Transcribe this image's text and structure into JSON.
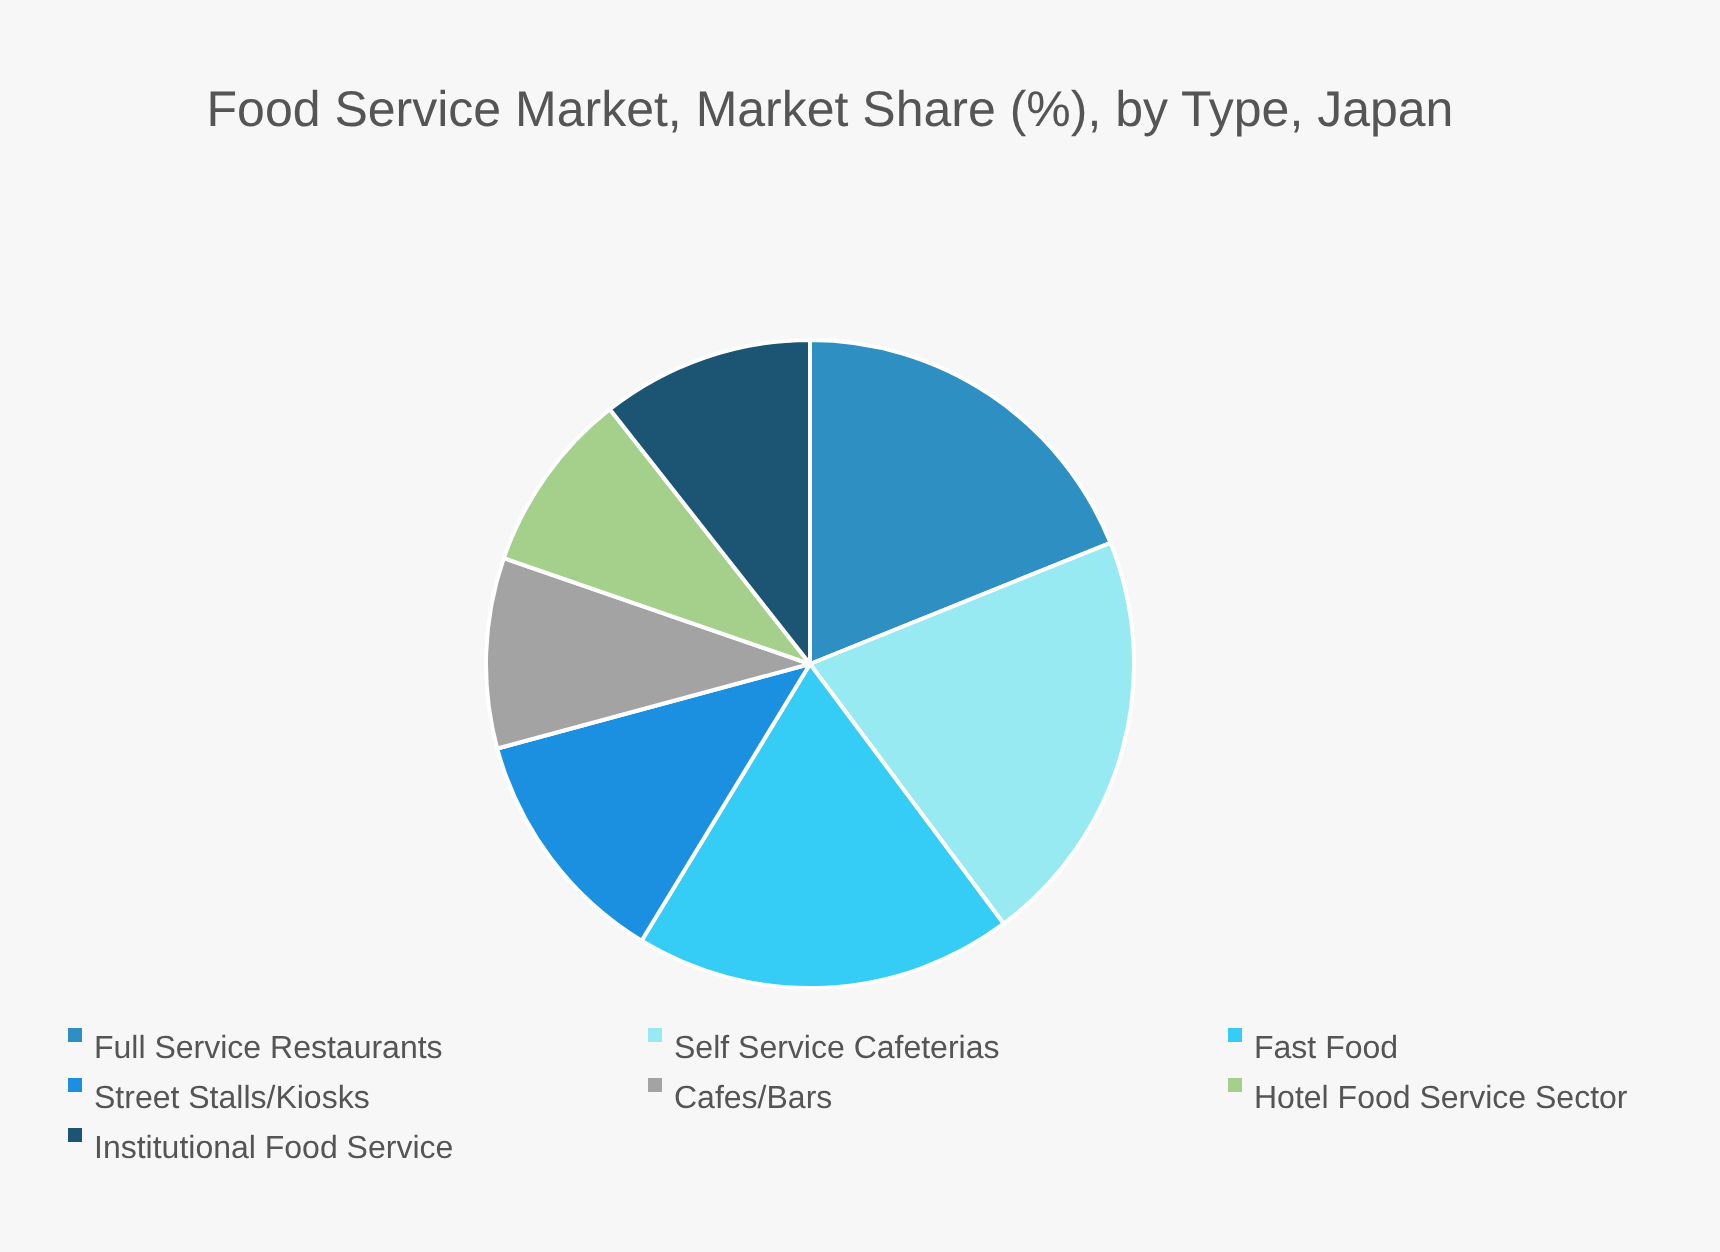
{
  "chart_data": {
    "type": "pie",
    "title": "Food Service Market, Market Share (%), by Type, Japan",
    "categories": [
      "Full Service Restaurants",
      "Self Service Cafeterias",
      "Fast Food",
      "Street Stalls/Kiosks",
      "Cafes/Bars",
      "Hotel Food Service Sector",
      "Institutional Food Service"
    ],
    "values": [
      18.9,
      20.9,
      18.9,
      12.1,
      9.5,
      9.1,
      10.6
    ],
    "colors": [
      "#2e8fc2",
      "#98eaf2",
      "#35ccf5",
      "#1b8fe0",
      "#a3a3a3",
      "#a4d08c",
      "#1c5474"
    ],
    "legend": "bottom"
  }
}
